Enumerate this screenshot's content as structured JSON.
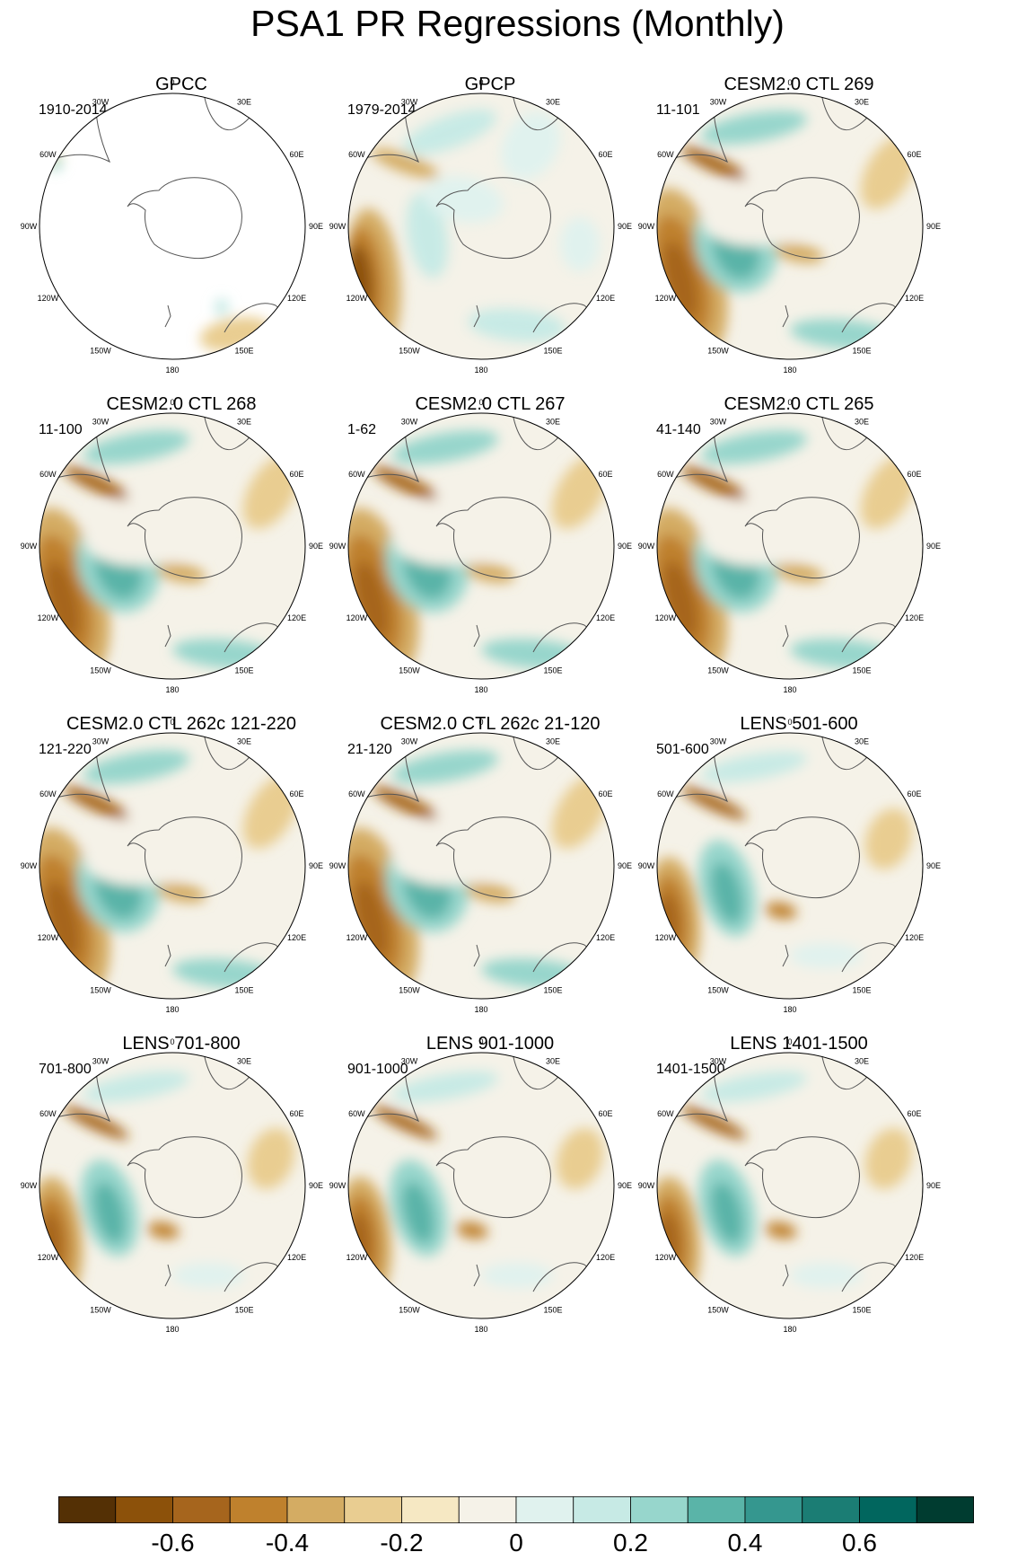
{
  "title": "PSA1 PR Regressions (Monthly)",
  "colors": {
    "levels": [
      "#543005",
      "#8c510a",
      "#a6651d",
      "#bf812d",
      "#d4ac63",
      "#e9cd91",
      "#f6e8c3",
      "#f5f2e8",
      "#e0f2ee",
      "#c7eae5",
      "#97d6cc",
      "#5ab4a8",
      "#35978f",
      "#1b7d74",
      "#01665e",
      "#003c30"
    ],
    "land_fill": "#ffffff",
    "coast": "#555555"
  },
  "longitude_labels": [
    "0",
    "30E",
    "60E",
    "90E",
    "120E",
    "150E",
    "180",
    "150W",
    "120W",
    "90W",
    "60W",
    "30W"
  ],
  "colorbar": {
    "tick_labels": [
      "-0.6",
      "-0.4",
      "-0.2",
      "0",
      "0.2",
      "0.4",
      "0.6"
    ]
  },
  "panels": [
    {
      "title": "GPCC",
      "years": "1910-2014",
      "pattern": "gpcc"
    },
    {
      "title": "GPCP",
      "years": "1979-2014",
      "pattern": "obs"
    },
    {
      "title": "CESM2.0 CTL 269",
      "years": "11-101",
      "pattern": "model"
    },
    {
      "title": "CESM2.0 CTL 268",
      "years": "11-100",
      "pattern": "model"
    },
    {
      "title": "CESM2.0 CTL 267",
      "years": "1-62",
      "pattern": "model"
    },
    {
      "title": "CESM2.0 CTL 265",
      "years": "41-140",
      "pattern": "model"
    },
    {
      "title": "CESM2.0 CTL 262c 121-220",
      "years": "121-220",
      "pattern": "model"
    },
    {
      "title": "CESM2.0 CTL 262c 21-120",
      "years": "21-120",
      "pattern": "model"
    },
    {
      "title": "LENS 501-600",
      "years": "501-600",
      "pattern": "lens"
    },
    {
      "title": "LENS 701-800",
      "years": "701-800",
      "pattern": "lens"
    },
    {
      "title": "LENS 901-1000",
      "years": "901-1000",
      "pattern": "lens"
    },
    {
      "title": "LENS 1401-1500",
      "years": "1401-1500",
      "pattern": "lens"
    }
  ]
}
